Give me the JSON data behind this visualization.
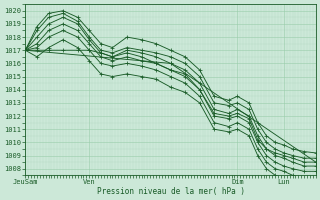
{
  "background_color": "#cce8d8",
  "grid_color": "#99ccaa",
  "line_color": "#1a5c28",
  "xlabel_text": "Pression niveau de la mer( hPa )",
  "x_tick_labels": [
    "JeuSam",
    "Ven",
    "Dim",
    "Lun"
  ],
  "x_tick_positions": [
    0,
    0.22,
    0.73,
    0.89
  ],
  "ylim": [
    1007.5,
    1020.5
  ],
  "yticks": [
    1008,
    1009,
    1010,
    1011,
    1012,
    1013,
    1014,
    1015,
    1016,
    1017,
    1018,
    1019,
    1020
  ],
  "xlim": [
    0.0,
    1.0
  ],
  "series": [
    {
      "x": [
        0.0,
        0.04,
        0.08,
        0.13,
        0.18,
        0.22,
        0.26,
        0.3,
        0.35,
        0.4,
        0.45,
        0.5,
        0.55,
        0.6,
        0.65,
        0.7,
        0.73,
        0.77,
        0.8,
        0.83,
        0.86,
        0.89,
        0.92,
        0.96,
        1.0
      ],
      "y": [
        1017.0,
        1018.8,
        1019.8,
        1020.0,
        1019.5,
        1018.5,
        1017.5,
        1017.2,
        1018.0,
        1017.8,
        1017.5,
        1017.0,
        1016.5,
        1015.5,
        1013.5,
        1013.2,
        1013.5,
        1013.0,
        1011.5,
        1010.5,
        1010.0,
        1009.8,
        1009.5,
        1009.3,
        1009.2
      ]
    },
    {
      "x": [
        0.0,
        0.04,
        0.08,
        0.13,
        0.18,
        0.22,
        0.26,
        0.3,
        0.35,
        0.4,
        0.45,
        0.5,
        0.55,
        0.6,
        0.65,
        0.7,
        0.73,
        0.77,
        0.8,
        0.83,
        0.86,
        0.89,
        0.92,
        0.96,
        1.0
      ],
      "y": [
        1017.0,
        1018.5,
        1019.5,
        1019.8,
        1019.2,
        1018.0,
        1017.0,
        1016.8,
        1017.2,
        1017.0,
        1016.8,
        1016.5,
        1016.0,
        1015.0,
        1013.0,
        1012.8,
        1013.0,
        1012.5,
        1011.0,
        1010.0,
        1009.5,
        1009.2,
        1009.0,
        1008.8,
        1008.8
      ]
    },
    {
      "x": [
        0.0,
        0.04,
        0.08,
        0.13,
        0.18,
        0.22,
        0.26,
        0.3,
        0.35,
        0.4,
        0.45,
        0.5,
        0.55,
        0.6,
        0.65,
        0.7,
        0.73,
        0.77,
        0.8,
        0.83,
        0.86,
        0.89,
        0.92,
        0.96,
        1.0
      ],
      "y": [
        1017.0,
        1018.0,
        1019.0,
        1019.5,
        1019.0,
        1017.8,
        1016.8,
        1016.5,
        1017.0,
        1016.8,
        1016.5,
        1016.0,
        1015.5,
        1014.5,
        1012.5,
        1012.2,
        1012.5,
        1012.0,
        1010.5,
        1009.5,
        1009.0,
        1008.8,
        1008.5,
        1008.2,
        1008.2
      ]
    },
    {
      "x": [
        0.0,
        0.04,
        0.08,
        0.13,
        0.18,
        0.22,
        0.26,
        0.3,
        0.35,
        0.4,
        0.45,
        0.5,
        0.55,
        0.6,
        0.65,
        0.7,
        0.73,
        0.77,
        0.8,
        0.83,
        0.86,
        0.89,
        0.92,
        0.96,
        1.0
      ],
      "y": [
        1017.0,
        1017.5,
        1018.5,
        1019.0,
        1018.5,
        1017.5,
        1016.5,
        1016.2,
        1016.5,
        1016.2,
        1016.0,
        1015.5,
        1015.0,
        1014.0,
        1012.0,
        1011.8,
        1012.0,
        1011.5,
        1010.0,
        1009.0,
        1008.5,
        1008.2,
        1008.0,
        1007.8,
        1007.8
      ]
    },
    {
      "x": [
        0.0,
        0.04,
        0.08,
        0.13,
        0.18,
        0.22,
        0.26,
        0.3,
        0.35,
        0.4,
        0.45,
        0.5,
        0.55,
        0.6,
        0.65,
        0.7,
        0.73,
        0.77,
        0.8,
        0.83,
        0.86,
        0.89,
        0.92,
        0.96,
        1.0
      ],
      "y": [
        1017.0,
        1017.2,
        1018.0,
        1018.5,
        1018.0,
        1017.0,
        1016.0,
        1015.8,
        1016.0,
        1015.8,
        1015.5,
        1015.0,
        1014.5,
        1013.5,
        1011.5,
        1011.2,
        1011.5,
        1011.0,
        1009.5,
        1008.5,
        1008.0,
        1007.8,
        1007.5,
        1007.3,
        1007.2
      ]
    },
    {
      "x": [
        0.0,
        0.04,
        0.08,
        0.13,
        0.18,
        0.22,
        0.26,
        0.3,
        0.35,
        0.4,
        0.45,
        0.5,
        0.55,
        0.6,
        0.65,
        0.7,
        0.73,
        0.77,
        0.8,
        0.83,
        0.86,
        0.89,
        0.92,
        0.96,
        1.0
      ],
      "y": [
        1017.0,
        1016.5,
        1017.2,
        1017.8,
        1017.2,
        1016.2,
        1015.2,
        1015.0,
        1015.2,
        1015.0,
        1014.8,
        1014.2,
        1013.8,
        1013.0,
        1011.0,
        1010.8,
        1011.0,
        1010.5,
        1009.0,
        1008.0,
        1007.5,
        1007.3,
        1007.0,
        1006.9,
        1007.0
      ]
    },
    {
      "x": [
        0.0,
        0.04,
        0.08,
        0.13,
        0.18,
        0.22,
        0.26,
        0.3,
        0.35,
        0.4,
        0.45,
        0.5,
        0.55,
        0.6,
        0.65,
        0.7,
        0.73,
        0.77,
        0.8,
        0.83,
        0.86,
        0.89,
        0.92,
        0.96,
        1.0
      ],
      "y": [
        1017.0,
        1017.0,
        1017.0,
        1017.0,
        1017.0,
        1017.0,
        1016.8,
        1016.5,
        1016.8,
        1016.5,
        1016.0,
        1015.5,
        1015.2,
        1014.0,
        1012.2,
        1012.0,
        1012.2,
        1011.8,
        1010.2,
        1009.5,
        1009.2,
        1009.0,
        1008.8,
        1008.5,
        1008.5
      ]
    },
    {
      "x": [
        0.0,
        0.5,
        1.0
      ],
      "y": [
        1017.0,
        1016.0,
        1008.5
      ]
    }
  ]
}
